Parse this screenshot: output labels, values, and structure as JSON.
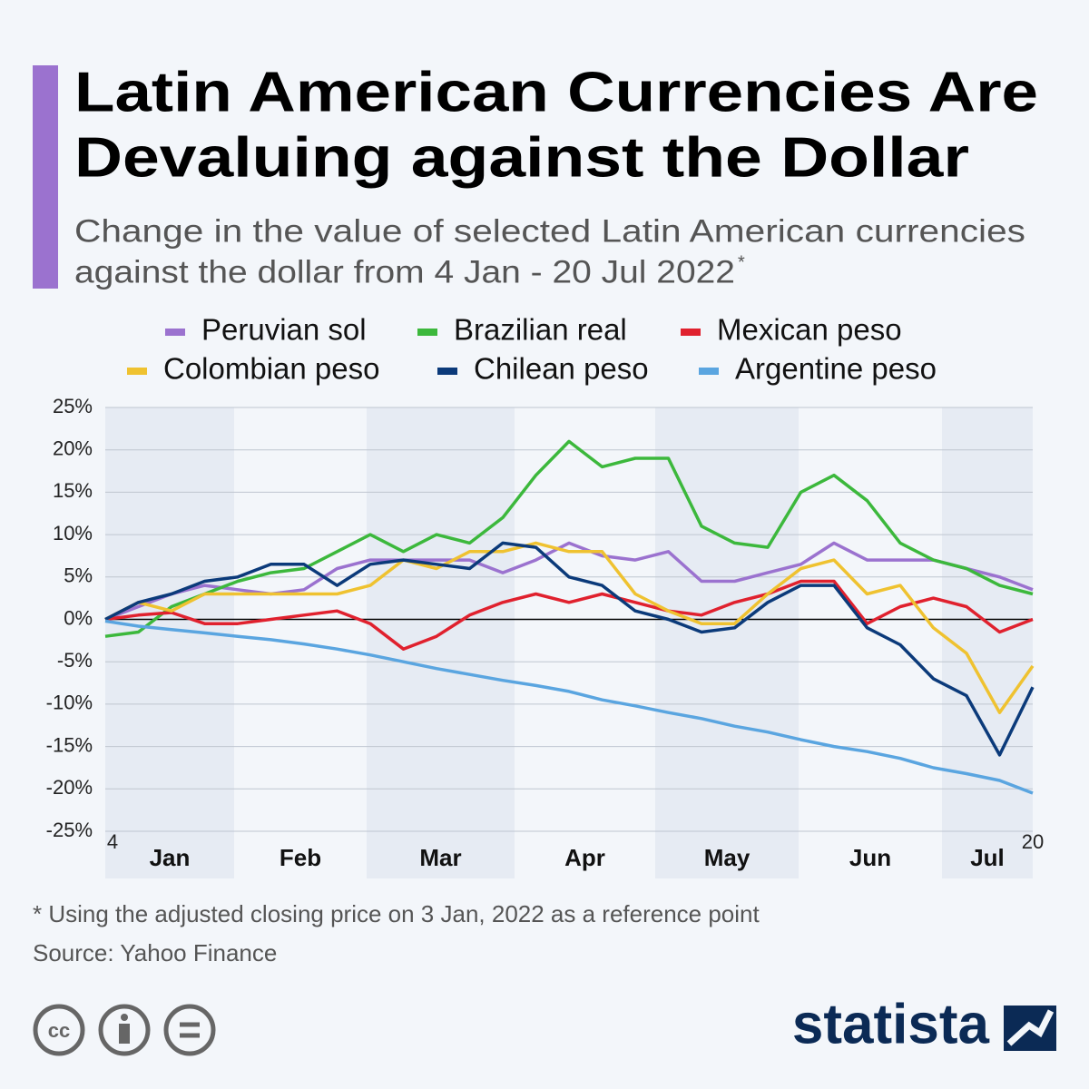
{
  "chart_data": {
    "type": "line",
    "title": [
      "Latin American Currencies Are",
      "Devaluing against the Dollar"
    ],
    "subtitle": [
      "Change in the value of selected Latin American currencies",
      "against the dollar from 4 Jan - 20 Jul 2022"
    ],
    "subtitle_mark": "*",
    "legend": "top",
    "grid": true,
    "categories": [
      "4",
      null,
      null,
      null,
      null,
      null,
      null,
      null,
      null,
      null,
      null,
      null,
      null,
      null,
      null,
      null,
      null,
      null,
      null,
      null,
      null,
      null,
      null,
      null,
      null,
      null,
      null,
      null,
      "20"
    ],
    "month_labels": [
      "Jan",
      "Feb",
      "Mar",
      "Apr",
      "May",
      "Jun",
      "Jul"
    ],
    "ylim": [
      -25,
      25
    ],
    "yticks": [
      {
        "value": -25,
        "label": "-25%"
      },
      {
        "value": -20,
        "label": "-20%"
      },
      {
        "value": -15,
        "label": "-15%"
      },
      {
        "value": -10,
        "label": "-10%"
      },
      {
        "value": -5,
        "label": "-5%"
      },
      {
        "value": 0,
        "label": "0%"
      },
      {
        "value": 5,
        "label": "5%"
      },
      {
        "value": 10,
        "label": "10%"
      },
      {
        "value": 15,
        "label": "15%"
      },
      {
        "value": 20,
        "label": "20%"
      },
      {
        "value": 25,
        "label": "25%"
      }
    ],
    "series": [
      {
        "name": "Peruvian sol",
        "color": "#9b72cf",
        "values": [
          0,
          1.5,
          3,
          4,
          3.5,
          3,
          3.5,
          6,
          7,
          7,
          7,
          7,
          5.5,
          7,
          9,
          7.5,
          7,
          8,
          4.5,
          4.5,
          5.5,
          6.5,
          9,
          7,
          7,
          7,
          6,
          5,
          3.5
        ]
      },
      {
        "name": "Brazilian real",
        "color": "#3cb83c",
        "values": [
          -2,
          -1.5,
          1.5,
          3,
          4.5,
          5.5,
          6,
          8,
          10,
          8,
          10,
          9,
          12,
          17,
          21,
          18,
          19,
          19,
          11,
          9,
          8.5,
          15,
          17,
          14,
          9,
          7,
          6,
          4,
          3
        ]
      },
      {
        "name": "Mexican peso",
        "color": "#e0212e",
        "values": [
          0,
          0.5,
          0.8,
          -0.5,
          -0.5,
          0,
          0.5,
          1,
          -0.5,
          -3.5,
          -2,
          0.5,
          2,
          3,
          2,
          3,
          2,
          1,
          0.5,
          2,
          3,
          4.5,
          4.5,
          -0.5,
          1.5,
          2.5,
          1.5,
          -1.5,
          0
        ]
      },
      {
        "name": "Colombian peso",
        "color": "#efc230",
        "values": [
          0,
          2,
          1,
          3,
          3,
          3,
          3,
          3,
          4,
          7,
          6,
          8,
          8,
          9,
          8,
          8,
          3,
          1,
          -0.5,
          -0.5,
          3,
          6,
          7,
          3,
          4,
          -1,
          -4,
          -11,
          -5.5
        ]
      },
      {
        "name": "Chilean peso",
        "color": "#0b3a7a",
        "values": [
          0,
          2,
          3,
          4.5,
          5,
          6.5,
          6.5,
          4,
          6.5,
          7,
          6.5,
          6,
          9,
          8.5,
          5,
          4,
          1,
          0,
          -1.5,
          -1,
          2,
          4,
          4,
          -1,
          -3,
          -7,
          -9,
          -16,
          -8
        ]
      },
      {
        "name": "Argentine peso",
        "color": "#5aa5e0",
        "values": [
          -0.2,
          -0.8,
          -1.2,
          -1.6,
          -2,
          -2.4,
          -2.9,
          -3.5,
          -4.2,
          -5,
          -5.8,
          -6.5,
          -7.2,
          -7.8,
          -8.5,
          -9.5,
          -10.2,
          -11,
          -11.7,
          -12.6,
          -13.3,
          -14.2,
          -15,
          -15.6,
          -16.4,
          -17.5,
          -18.2,
          -19,
          -20.5
        ]
      }
    ],
    "footnote": "* Using the adjusted closing price on 3 Jan, 2022 as a reference point",
    "source": "Source: Yahoo Finance",
    "brand": "statista"
  }
}
